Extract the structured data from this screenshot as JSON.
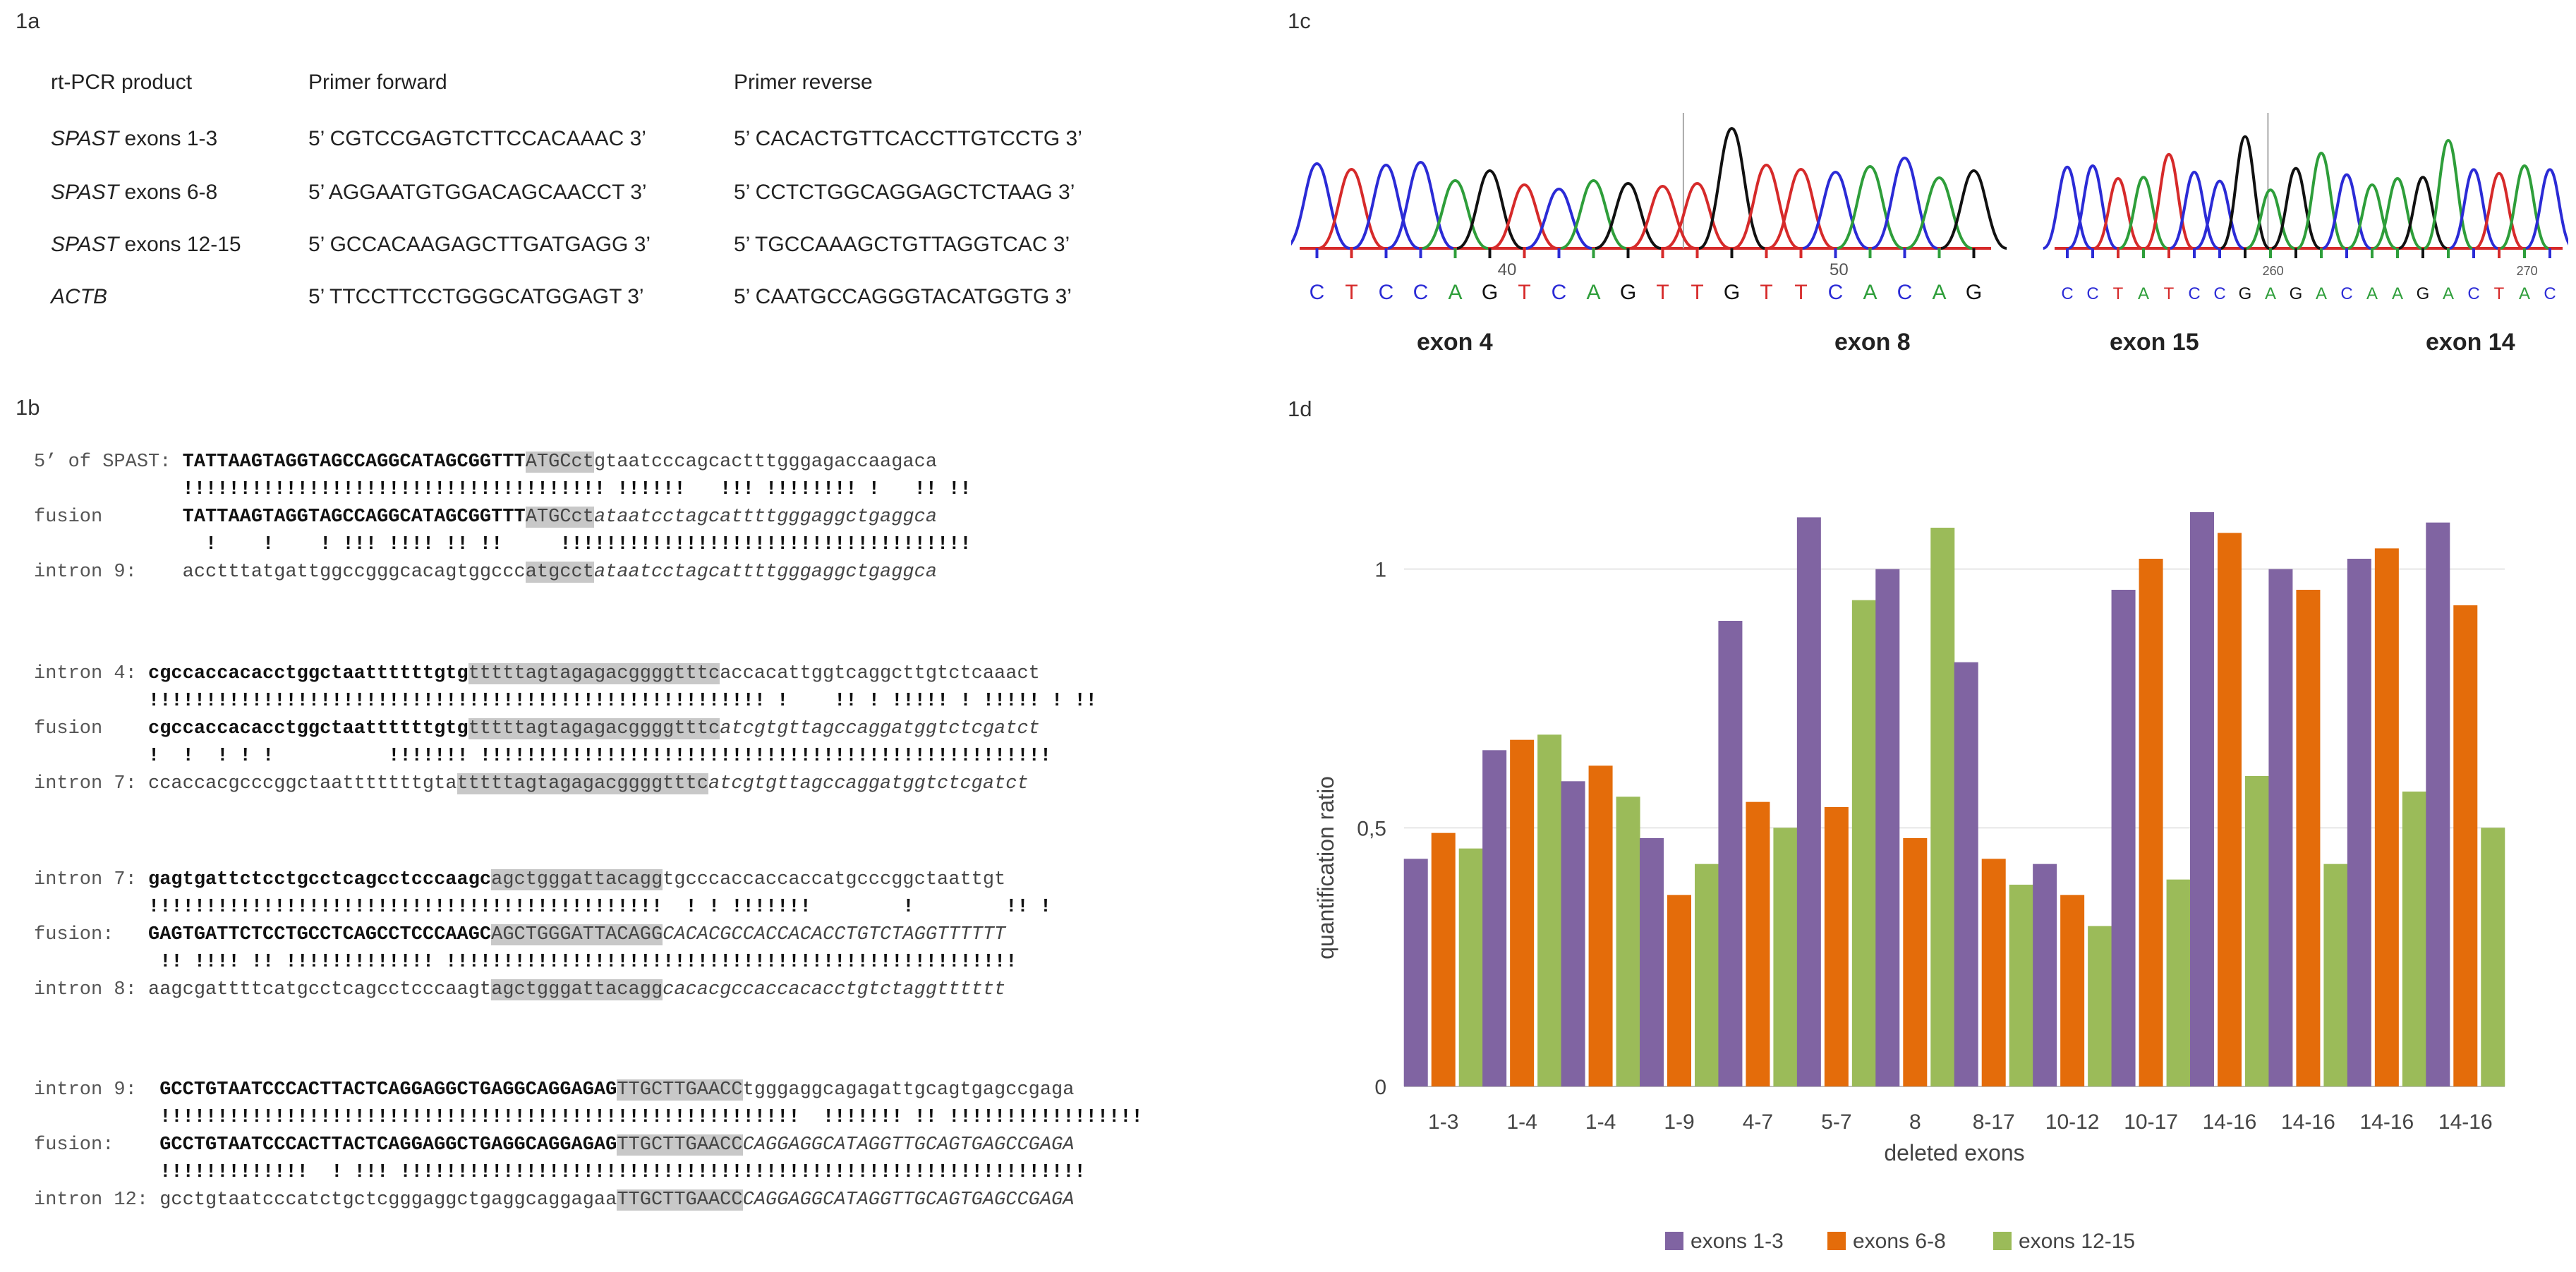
{
  "panel_labels": {
    "a": "1a",
    "b": "1b",
    "c": "1c",
    "d": "1d"
  },
  "primer_table": {
    "headers": [
      "rt-PCR product",
      "Primer forward",
      "Primer reverse"
    ],
    "rows": [
      {
        "gene": "SPAST",
        "exons": " exons 1-3",
        "forward": "5’ CGTCCGAGTCTTCCACAAAC 3’",
        "reverse": "5’ CACACTGTTCACCTTGTCCTG 3’"
      },
      {
        "gene": "SPAST",
        "exons": " exons 6-8",
        "forward": "5’ AGGAATGTGGACAGCAACCT 3’",
        "reverse": "5’ CCTCTGGCAGGAGCTCTAAG 3’"
      },
      {
        "gene": "SPAST",
        "exons": " exons 12-15",
        "forward": "5’ GCCACAAGAGCTTGATGAGG 3’",
        "reverse": "5’ TGCCAAAGCTGTTAGGTCAC 3’"
      },
      {
        "gene": "ACTB",
        "exons": "",
        "forward": "5’ TTCCTTCCTGGGCATGGAGT 3’",
        "reverse": "5’ CAATGCCAGGGTACATGGTG 3’"
      }
    ]
  },
  "alignments": [
    {
      "lines": [
        {
          "name": "5’ of SPAST: ",
          "bold": "TATTAAGTAGGTAGCCAGGCATAGCGGTTT",
          "hl": "ATGCct",
          "tail": "gtaatcccagcactttgggagaccaagaca",
          "italic": false
        },
        {
          "match": "             !!!!!!!!!!!!!!!!!!!!!!!!!!!!!!!!!!!!! !!!!!!   !!! !!!!!!!! !   !! !!"
        },
        {
          "name": "fusion       ",
          "bold": "TATTAAGTAGGTAGCCAGGCATAGCGGTTT",
          "hl": "ATGCct",
          "tail": "ataatcctagcattttgggaggctgaggca",
          "italic": true
        },
        {
          "match": "               !    !    ! !!! !!!! !! !!     !!!!!!!!!!!!!!!!!!!!!!!!!!!!!!!!!!!!"
        },
        {
          "name": "intron 9:    ",
          "plain": "acctttatgattggccgggcacagtggccc",
          "hl": "atgcct",
          "tail": "ataatcctagcattttgggaggctgaggca",
          "italic": true
        }
      ]
    },
    {
      "lines": [
        {
          "name": "intron 4: ",
          "bold": "cgccaccacacctggctaattttttgtg",
          "hl": "tttttagtagagacggggtttc",
          "tail": "accacattggtcaggcttgtctcaaact",
          "italic": false
        },
        {
          "match": "          !!!!!!!!!!!!!!!!!!!!!!!!!!!!!!!!!!!!!!!!!!!!!!!!!!!!!! !    !! ! !!!!! ! !!!!! ! !!"
        },
        {
          "name": "fusion    ",
          "bold": "cgccaccacacctggctaattttttgtg",
          "hl": "tttttagtagagacggggtttc",
          "tail": "atcgtgttagccaggatggtctcgatct",
          "italic": true
        },
        {
          "match": "          !  !  ! ! !          !!!!!!! !!!!!!!!!!!!!!!!!!!!!!!!!!!!!!!!!!!!!!!!!!!!!!!!!!"
        },
        {
          "name": "intron 7: ",
          "plain": "ccaccacgcccggctaatttttttgta",
          "hl": "tttttagtagagacggggtttc",
          "tail": "atcgtgttagccaggatggtctcgatct",
          "italic": true
        }
      ]
    },
    {
      "lines": [
        {
          "name": "intron 7: ",
          "bold": "gagtgattctcctgcctcagcctcccaagc",
          "hl": "agctgggattacagg",
          "tail": "tgcccaccaccaccatgcccggctaattgt",
          "italic": false
        },
        {
          "match": "          !!!!!!!!!!!!!!!!!!!!!!!!!!!!!!!!!!!!!!!!!!!!!  ! ! !!!!!!!        !        !! !"
        },
        {
          "name": "fusion:   ",
          "bold": "GAGTGATTCTCCTGCCTCAGCCTCCCAAGC",
          "hl": "AGCTGGGATTACAGG",
          "tail": "CACACGCCACCACACCTGTCTAGGTTTTTT",
          "italic": true
        },
        {
          "match": "           !! !!!! !! !!!!!!!!!!!!! !!!!!!!!!!!!!!!!!!!!!!!!!!!!!!!!!!!!!!!!!!!!!!!!!!"
        },
        {
          "name": "intron 8: ",
          "plain": "aagcgattttcatgcctcagcctcccaagt",
          "hl": "agctgggattacagg",
          "tail": "cacacgccaccacacctgtctaggtttttt",
          "italic": true
        }
      ]
    },
    {
      "lines": [
        {
          "name": "intron 9:  ",
          "bold": "GCCTGTAATCCCACTTACTCAGGAGGCTGAGGCAGGAGAG",
          "hl": "TTGCTTGAACC",
          "tail": "tgggaggcagagattgcagtgagccgaga",
          "italic": false
        },
        {
          "match": "           !!!!!!!!!!!!!!!!!!!!!!!!!!!!!!!!!!!!!!!!!!!!!!!!!!!!!!!!  !!!!!!! !! !!!!!!!!!!!!!!!!!"
        },
        {
          "name": "fusion:    ",
          "bold": "GCCTGTAATCCCACTTACTCAGGAGGCTGAGGCAGGAGAG",
          "hl": "TTGCTTGAACC",
          "tail": "CAGGAGGCATAGGTTGCAGTGAGCCGAGA",
          "italic": true
        },
        {
          "match": "           !!!!!!!!!!!!!  ! !!! !!!!!!!!!!!!!!!!!!!!!!!!!!!!!!!!!!!!!!!!!!!!!!!!!!!!!!!!!!!!"
        },
        {
          "name": "intron 12: ",
          "plain": "gcctgtaatcccatctgctcgggaggctgaggcaggagaa",
          "hl": "TTGCTTGAACC",
          "tail": "CAGGAGGCATAGGTTGCAGTGAGCCGAGA",
          "italic": true
        }
      ]
    }
  ],
  "chromatograms": [
    {
      "sequence": [
        "C",
        "T",
        "C",
        "C",
        "A",
        "G",
        "T",
        "C",
        "A",
        "G",
        "T",
        "T",
        "G",
        "T",
        "T",
        "C",
        "A",
        "C",
        "A",
        "G"
      ],
      "pos_ticks": [
        "40",
        "50"
      ],
      "exon_left": "exon 4",
      "exon_right": "exon 8"
    },
    {
      "sequence": [
        "C",
        "C",
        "T",
        "A",
        "T",
        "C",
        "C",
        "G",
        "A",
        "G",
        "A",
        "C",
        "A",
        "A",
        "G",
        "A",
        "C",
        "T",
        "A",
        "C"
      ],
      "pos_ticks": [
        "260",
        "270"
      ],
      "exon_left": "exon 15",
      "exon_right": "exon 14"
    }
  ],
  "base_colors": {
    "A": "#2e9e3a",
    "C": "#2b2bd6",
    "G": "#111111",
    "T": "#d62a2a"
  },
  "chart_data": {
    "type": "bar",
    "title": "",
    "xlabel": "deleted exons",
    "ylabel": "quantification ratio",
    "categories": [
      "1-3",
      "1-4",
      "1-4",
      "1-9",
      "4-7",
      "5-7",
      "8",
      "8-17",
      "10-12",
      "10-17",
      "14-16",
      "14-16",
      "14-16",
      "14-16"
    ],
    "series": [
      {
        "name": "exons 1-3",
        "color": "#8064a2",
        "values": [
          0.44,
          0.65,
          0.59,
          0.48,
          0.9,
          1.1,
          1.0,
          0.82,
          0.43,
          0.96,
          1.11,
          1.0,
          1.02,
          1.09
        ]
      },
      {
        "name": "exons 6-8",
        "color": "#e46c0a",
        "values": [
          0.49,
          0.67,
          0.62,
          0.37,
          0.55,
          0.54,
          0.48,
          0.44,
          0.37,
          1.02,
          1.07,
          0.96,
          1.04,
          0.93
        ]
      },
      {
        "name": "exons 12-15",
        "color": "#9bbb59",
        "values": [
          0.46,
          0.68,
          0.56,
          0.43,
          0.5,
          0.94,
          1.08,
          0.39,
          0.31,
          0.4,
          0.6,
          0.43,
          0.57,
          0.5
        ]
      }
    ],
    "yticks": [
      "0",
      "0,5",
      "1"
    ],
    "ylim": [
      0,
      1.2
    ],
    "legend": "bottom",
    "grid": true
  }
}
